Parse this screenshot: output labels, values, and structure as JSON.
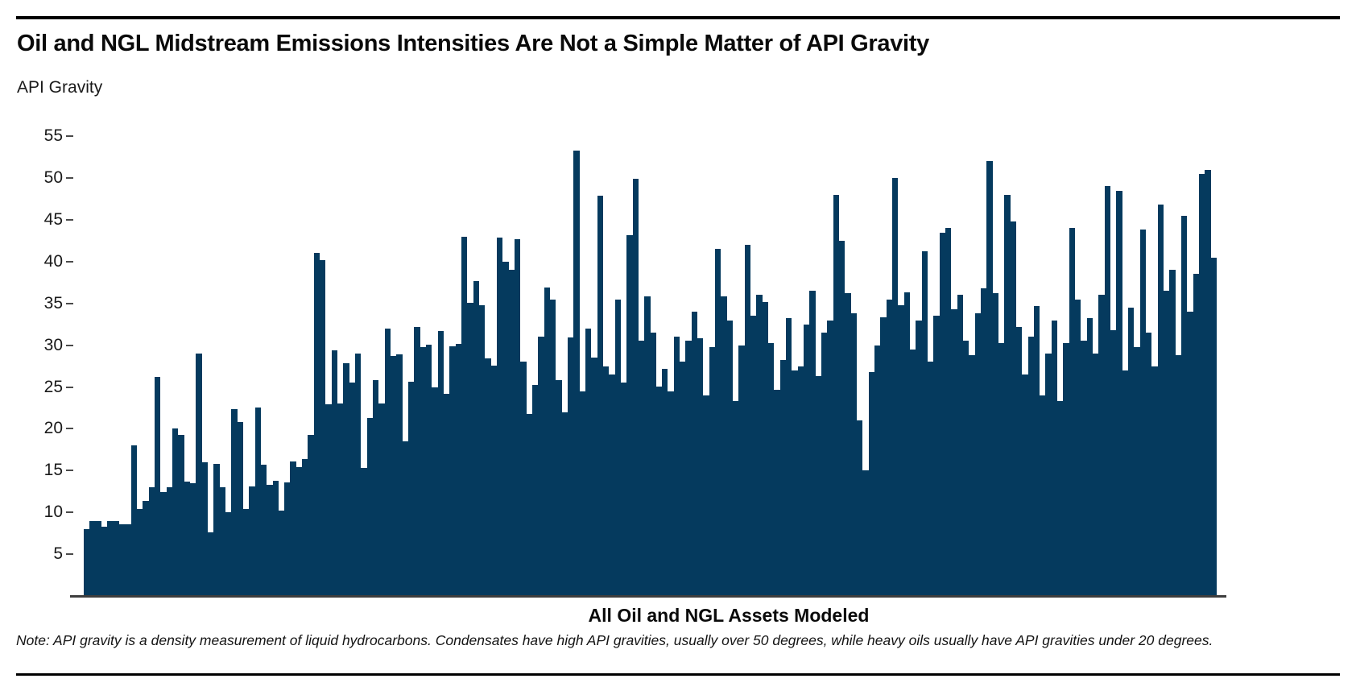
{
  "header": {
    "title": "Oil and NGL Midstream Emissions Intensities Are Not a Simple Matter of API Gravity"
  },
  "footer": {
    "note": "Note: API gravity is a density measurement of liquid hydrocarbons. Condensates have high API gravities, usually over 50 degrees, while heavy oils usually have API gravities under 20 degrees."
  },
  "chart_data": {
    "type": "bar",
    "title": "Oil and NGL Midstream Emissions Intensities Are Not a Simple Matter of API Gravity",
    "ylabel": "API Gravity",
    "xlabel": "All Oil and NGL Assets Modeled",
    "ylim": [
      0,
      55
    ],
    "yticks": [
      5,
      10,
      15,
      20,
      25,
      30,
      35,
      40,
      45,
      50,
      55
    ],
    "grid": false,
    "legend": "none",
    "bar_color": "#053a5e",
    "axis_color": "#3d3d3d",
    "values": [
      8.0,
      9.0,
      9.0,
      8.3,
      9.0,
      9.0,
      8.6,
      8.6,
      18.0,
      10.4,
      11.4,
      13.0,
      26.2,
      12.4,
      13.0,
      20.0,
      19.3,
      13.7,
      13.5,
      29.0,
      16.0,
      7.6,
      15.8,
      13.0,
      10.0,
      22.4,
      20.8,
      10.4,
      13.1,
      22.5,
      15.7,
      13.3,
      13.8,
      10.2,
      13.6,
      16.1,
      15.4,
      16.4,
      19.3,
      41.0,
      40.2,
      22.9,
      29.4,
      23.0,
      27.8,
      25.5,
      29.0,
      15.3,
      21.3,
      25.8,
      23.0,
      32.0,
      28.7,
      28.9,
      18.5,
      25.6,
      32.2,
      29.8,
      30.1,
      25.0,
      31.7,
      24.2,
      29.9,
      30.2,
      43.0,
      35.1,
      37.7,
      34.8,
      28.4,
      27.6,
      42.9,
      40.0,
      39.0,
      42.7,
      28.0,
      21.8,
      25.2,
      31.0,
      36.9,
      35.5,
      25.8,
      22.0,
      30.9,
      53.3,
      24.5,
      32.0,
      28.5,
      47.9,
      27.5,
      26.5,
      35.5,
      25.5,
      43.2,
      49.9,
      30.5,
      35.8,
      31.5,
      25.1,
      27.2,
      24.5,
      31.0,
      28.0,
      30.5,
      34.0,
      30.8,
      24.0,
      29.8,
      41.5,
      35.8,
      33.0,
      23.3,
      30.0,
      42.0,
      33.5,
      36.0,
      35.2,
      30.3,
      24.7,
      28.2,
      33.2,
      27.0,
      27.5,
      32.5,
      36.5,
      26.3,
      31.5,
      33.0,
      48.0,
      42.5,
      36.2,
      33.8,
      21.0,
      15.0,
      26.8,
      30.0,
      33.3,
      35.5,
      50.0,
      34.8,
      36.3,
      29.5,
      33.0,
      41.2,
      28.0,
      33.5,
      43.5,
      44.0,
      34.3,
      36.0,
      30.5,
      28.8,
      33.8,
      36.8,
      52.0,
      36.2,
      30.3,
      48.0,
      44.8,
      32.2,
      26.5,
      31.0,
      34.7,
      24.0,
      29.0,
      33.0,
      23.3,
      30.3,
      44.0,
      35.5,
      30.5,
      33.2,
      29.0,
      36.0,
      49.0,
      31.8,
      48.5,
      27.0,
      34.5,
      29.8,
      43.8,
      31.5,
      27.5,
      46.8,
      36.5,
      39.0,
      28.8,
      45.5,
      34.0,
      38.5,
      50.5,
      51.0,
      40.5
    ]
  }
}
